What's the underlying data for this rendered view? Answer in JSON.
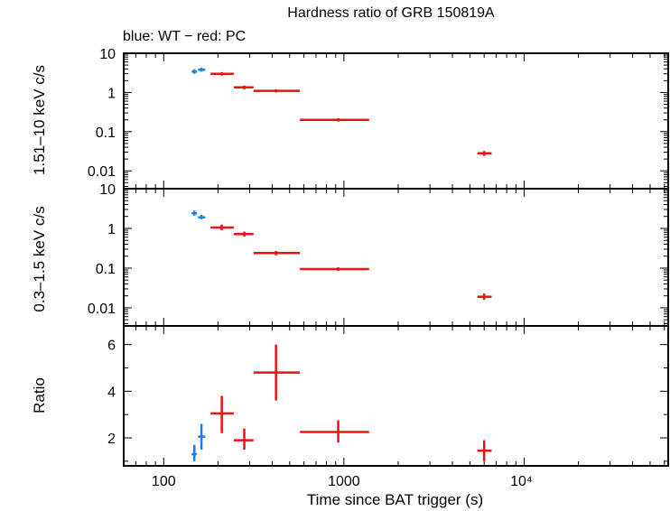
{
  "chart_data": {
    "type": "scatter",
    "title": "Hardness ratio of GRB 150819A",
    "subtitle": "blue: WT − red: PC",
    "xlabel": "Time since BAT trigger (s)",
    "xscale": "log",
    "xlim": [
      60,
      63000
    ],
    "x_tick_labels": [
      "100",
      "1000",
      "10⁴"
    ],
    "colors": {
      "WT": "#1a7fe6",
      "PC": "#ee1111"
    },
    "panels": [
      {
        "ylabel": "1.51–10 keV c/s",
        "yscale": "log",
        "ylim": [
          0.0035,
          10
        ],
        "y_tick_labels": [
          "10",
          "1",
          "0.1",
          "0.01"
        ],
        "series": [
          {
            "name": "WT",
            "points": [
              {
                "x": 148,
                "xlo": 143,
                "xhi": 153,
                "y": 3.4,
                "ylo": 3.0,
                "yhi": 3.9
              },
              {
                "x": 162,
                "xlo": 155,
                "xhi": 170,
                "y": 3.8,
                "ylo": 3.4,
                "yhi": 4.3
              }
            ]
          },
          {
            "name": "PC",
            "points": [
              {
                "x": 210,
                "xlo": 182,
                "xhi": 245,
                "y": 3.0,
                "ylo": 2.7,
                "yhi": 3.3
              },
              {
                "x": 280,
                "xlo": 245,
                "xhi": 315,
                "y": 1.35,
                "ylo": 1.2,
                "yhi": 1.5
              },
              {
                "x": 420,
                "xlo": 315,
                "xhi": 570,
                "y": 1.1,
                "ylo": 1.0,
                "yhi": 1.2
              },
              {
                "x": 930,
                "xlo": 570,
                "xhi": 1380,
                "y": 0.2,
                "ylo": 0.18,
                "yhi": 0.22
              },
              {
                "x": 6000,
                "xlo": 5500,
                "xhi": 6600,
                "y": 0.028,
                "ylo": 0.024,
                "yhi": 0.032
              }
            ]
          }
        ]
      },
      {
        "ylabel": "0.3–1.5 keV c/s",
        "yscale": "log",
        "ylim": [
          0.0035,
          10
        ],
        "y_tick_labels": [
          "10",
          "1",
          "0.1",
          "0.01"
        ],
        "series": [
          {
            "name": "WT",
            "points": [
              {
                "x": 148,
                "xlo": 143,
                "xhi": 153,
                "y": 2.4,
                "ylo": 2.1,
                "yhi": 2.8
              },
              {
                "x": 162,
                "xlo": 155,
                "xhi": 170,
                "y": 1.9,
                "ylo": 1.7,
                "yhi": 2.2
              }
            ]
          },
          {
            "name": "PC",
            "points": [
              {
                "x": 210,
                "xlo": 182,
                "xhi": 245,
                "y": 1.05,
                "ylo": 0.9,
                "yhi": 1.25
              },
              {
                "x": 280,
                "xlo": 245,
                "xhi": 315,
                "y": 0.72,
                "ylo": 0.62,
                "yhi": 0.83
              },
              {
                "x": 420,
                "xlo": 315,
                "xhi": 570,
                "y": 0.24,
                "ylo": 0.21,
                "yhi": 0.27
              },
              {
                "x": 930,
                "xlo": 570,
                "xhi": 1380,
                "y": 0.095,
                "ylo": 0.085,
                "yhi": 0.105
              },
              {
                "x": 6000,
                "xlo": 5500,
                "xhi": 6600,
                "y": 0.019,
                "ylo": 0.016,
                "yhi": 0.023
              }
            ]
          }
        ]
      },
      {
        "ylabel": "Ratio",
        "yscale": "linear",
        "ylim": [
          0.8,
          6.8
        ],
        "y_ticks": [
          2,
          4,
          6
        ],
        "y_tick_labels": [
          "2",
          "4",
          "6"
        ],
        "series": [
          {
            "name": "WT",
            "points": [
              {
                "x": 148,
                "xlo": 143,
                "xhi": 153,
                "y": 1.3,
                "ylo": 1.0,
                "yhi": 1.7
              },
              {
                "x": 162,
                "xlo": 155,
                "xhi": 170,
                "y": 2.05,
                "ylo": 1.5,
                "yhi": 2.6
              }
            ]
          },
          {
            "name": "PC",
            "points": [
              {
                "x": 210,
                "xlo": 182,
                "xhi": 245,
                "y": 3.05,
                "ylo": 2.2,
                "yhi": 3.8
              },
              {
                "x": 280,
                "xlo": 245,
                "xhi": 315,
                "y": 1.9,
                "ylo": 1.5,
                "yhi": 2.4
              },
              {
                "x": 420,
                "xlo": 315,
                "xhi": 570,
                "y": 4.8,
                "ylo": 3.6,
                "yhi": 6.0
              },
              {
                "x": 930,
                "xlo": 570,
                "xhi": 1380,
                "y": 2.25,
                "ylo": 1.8,
                "yhi": 2.75
              },
              {
                "x": 6000,
                "xlo": 5500,
                "xhi": 6600,
                "y": 1.45,
                "ylo": 1.0,
                "yhi": 1.9
              }
            ]
          }
        ]
      }
    ]
  }
}
